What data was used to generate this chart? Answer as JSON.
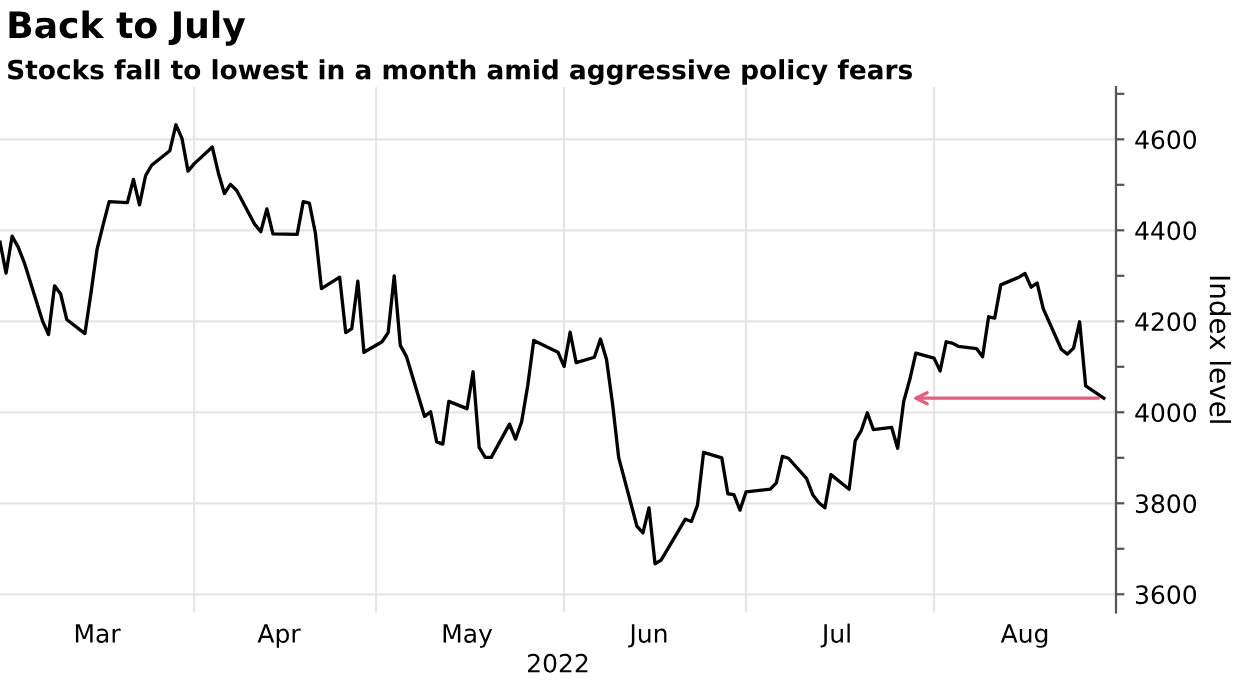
{
  "chart_data": {
    "type": "line",
    "title": "Back to July",
    "subtitle": "Stocks fall to lowest in a month amid aggressive policy fears",
    "xlabel": "2022",
    "ylabel": "Index level",
    "x": [
      "2022-02-28",
      "2022-03-01",
      "2022-03-02",
      "2022-03-03",
      "2022-03-04",
      "2022-03-07",
      "2022-03-08",
      "2022-03-09",
      "2022-03-10",
      "2022-03-11",
      "2022-03-14",
      "2022-03-15",
      "2022-03-16",
      "2022-03-17",
      "2022-03-18",
      "2022-03-21",
      "2022-03-22",
      "2022-03-23",
      "2022-03-24",
      "2022-03-25",
      "2022-03-28",
      "2022-03-29",
      "2022-03-30",
      "2022-03-31",
      "2022-04-01",
      "2022-04-04",
      "2022-04-05",
      "2022-04-06",
      "2022-04-07",
      "2022-04-08",
      "2022-04-11",
      "2022-04-12",
      "2022-04-13",
      "2022-04-14",
      "2022-04-18",
      "2022-04-19",
      "2022-04-20",
      "2022-04-21",
      "2022-04-22",
      "2022-04-25",
      "2022-04-26",
      "2022-04-27",
      "2022-04-28",
      "2022-04-29",
      "2022-05-02",
      "2022-05-03",
      "2022-05-04",
      "2022-05-05",
      "2022-05-06",
      "2022-05-09",
      "2022-05-10",
      "2022-05-11",
      "2022-05-12",
      "2022-05-13",
      "2022-05-16",
      "2022-05-17",
      "2022-05-18",
      "2022-05-19",
      "2022-05-20",
      "2022-05-23",
      "2022-05-24",
      "2022-05-25",
      "2022-05-26",
      "2022-05-27",
      "2022-05-31",
      "2022-06-01",
      "2022-06-02",
      "2022-06-03",
      "2022-06-06",
      "2022-06-07",
      "2022-06-08",
      "2022-06-09",
      "2022-06-10",
      "2022-06-13",
      "2022-06-14",
      "2022-06-15",
      "2022-06-16",
      "2022-06-17",
      "2022-06-21",
      "2022-06-22",
      "2022-06-23",
      "2022-06-24",
      "2022-06-27",
      "2022-06-28",
      "2022-06-29",
      "2022-06-30",
      "2022-07-01",
      "2022-07-05",
      "2022-07-06",
      "2022-07-07",
      "2022-07-08",
      "2022-07-11",
      "2022-07-12",
      "2022-07-13",
      "2022-07-14",
      "2022-07-15",
      "2022-07-18",
      "2022-07-19",
      "2022-07-20",
      "2022-07-21",
      "2022-07-22",
      "2022-07-25",
      "2022-07-26",
      "2022-07-27",
      "2022-07-28",
      "2022-07-29",
      "2022-08-01",
      "2022-08-02",
      "2022-08-03",
      "2022-08-04",
      "2022-08-05",
      "2022-08-08",
      "2022-08-09",
      "2022-08-10",
      "2022-08-11",
      "2022-08-12",
      "2022-08-15",
      "2022-08-16",
      "2022-08-17",
      "2022-08-18",
      "2022-08-19",
      "2022-08-22",
      "2022-08-23",
      "2022-08-24",
      "2022-08-25",
      "2022-08-26",
      "2022-08-29"
    ],
    "series": [
      {
        "color": "#000000",
        "values": [
          4374,
          4306,
          4387,
          4363,
          4329,
          4201,
          4171,
          4278,
          4260,
          4204,
          4173,
          4262,
          4358,
          4412,
          4463,
          4461,
          4512,
          4456,
          4520,
          4543,
          4575,
          4632,
          4602,
          4530,
          4546,
          4583,
          4526,
          4481,
          4501,
          4488,
          4413,
          4397,
          4447,
          4392,
          4391,
          4463,
          4460,
          4394,
          4272,
          4297,
          4175,
          4184,
          4288,
          4132,
          4155,
          4175,
          4300,
          4147,
          4123,
          3991,
          4001,
          3935,
          3930,
          4024,
          4008,
          4089,
          3923,
          3901,
          3901,
          3974,
          3941,
          3979,
          4058,
          4158,
          4132,
          4101,
          4176,
          4109,
          4121,
          4161,
          4116,
          4018,
          3901,
          3750,
          3735,
          3790,
          3667,
          3675,
          3765,
          3760,
          3796,
          3912,
          3900,
          3821,
          3819,
          3785,
          3825,
          3831,
          3845,
          3903,
          3899,
          3854,
          3819,
          3801,
          3790,
          3863,
          3831,
          3937,
          3960,
          3999,
          3962,
          3967,
          3921,
          4024,
          4072,
          4130,
          4119,
          4091,
          4155,
          4152,
          4145,
          4140,
          4122,
          4210,
          4207,
          4280,
          4297,
          4305,
          4275,
          4284,
          4228,
          4138,
          4128,
          4141,
          4199,
          4058,
          4031
        ]
      }
    ],
    "xlim": [
      "2022-02-28",
      "2022-08-31"
    ],
    "xticks": [
      {
        "value": "2022-03-16",
        "label": "Mar"
      },
      {
        "value": "2022-04-01",
        "label": null
      },
      {
        "value": "2022-04-15",
        "label": "Apr"
      },
      {
        "value": "2022-05-01",
        "label": null
      },
      {
        "value": "2022-05-16",
        "label": "May"
      },
      {
        "value": "2022-06-01",
        "label": null
      },
      {
        "value": "2022-06-15",
        "label": "Jun"
      },
      {
        "value": "2022-07-01",
        "label": null
      },
      {
        "value": "2022-07-16",
        "label": "Jul"
      },
      {
        "value": "2022-08-01",
        "label": null
      },
      {
        "value": "2022-08-16",
        "label": "Aug"
      }
    ],
    "ylim": [
      3560,
      4715
    ],
    "yticks": [
      3600,
      {
        "value": 3700,
        "label": null
      },
      3800,
      {
        "value": 3900,
        "label": null
      },
      4000,
      {
        "value": 4100,
        "label": null
      },
      4200,
      {
        "value": 4300,
        "label": null
      },
      4400,
      {
        "value": 4500,
        "label": null
      },
      4600,
      {
        "value": 4700,
        "label": null
      }
    ],
    "grid": true,
    "marker": "none",
    "line_style": "solid"
  }
}
